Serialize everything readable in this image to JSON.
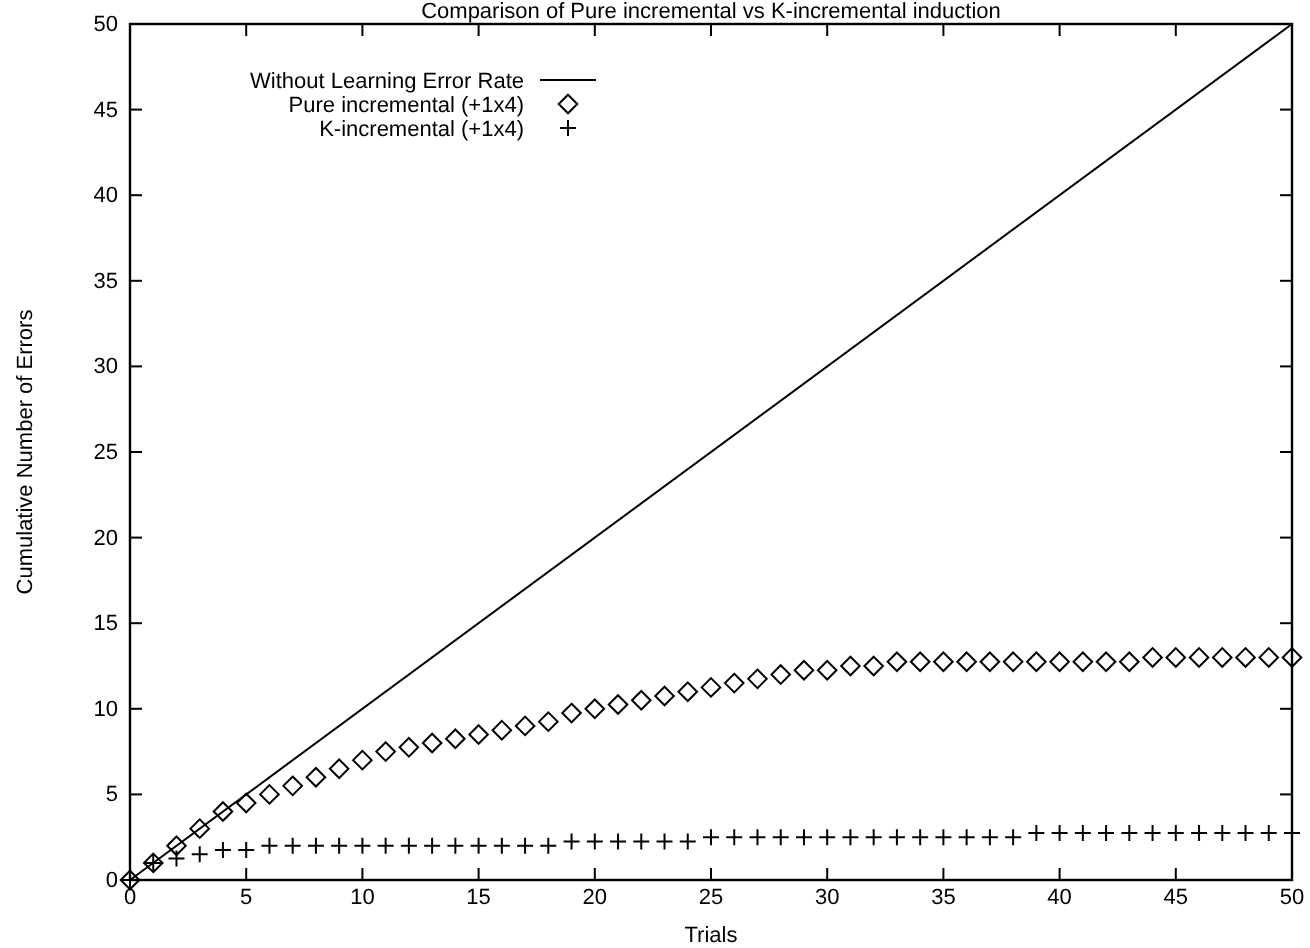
{
  "chart_data": {
    "type": "scatter",
    "title": "Comparison of Pure incremental vs K-incremental induction",
    "xlabel": "Trials",
    "ylabel": "Cumulative Number of Errors",
    "xlim": [
      0,
      50
    ],
    "ylim": [
      0,
      50
    ],
    "xticks": [
      0,
      5,
      10,
      15,
      20,
      25,
      30,
      35,
      40,
      45,
      50
    ],
    "yticks": [
      0,
      5,
      10,
      15,
      20,
      25,
      30,
      35,
      40,
      45,
      50
    ],
    "legend": "top left",
    "grid": false,
    "series": [
      {
        "name": "Without Learning Error Rate",
        "type": "line",
        "color": "#000000",
        "marker": "none",
        "x": [
          0,
          50
        ],
        "values": [
          0,
          50
        ]
      },
      {
        "name": "Pure incremental (+1x4)",
        "color": "#000000",
        "marker": "diamond",
        "x": [
          0,
          1,
          2,
          3,
          4,
          5,
          6,
          7,
          8,
          9,
          10,
          11,
          12,
          13,
          14,
          15,
          16,
          17,
          18,
          19,
          20,
          21,
          22,
          23,
          24,
          25,
          26,
          27,
          28,
          29,
          30,
          31,
          32,
          33,
          34,
          35,
          36,
          37,
          38,
          39,
          40,
          41,
          42,
          43,
          44,
          45,
          46,
          47,
          48,
          49,
          50
        ],
        "values": [
          0,
          1,
          2,
          3,
          4,
          4.5,
          5,
          5.5,
          6,
          6.5,
          7,
          7.5,
          7.75,
          8,
          8.25,
          8.5,
          8.75,
          9,
          9.25,
          9.75,
          10,
          10.25,
          10.5,
          10.75,
          11,
          11.25,
          11.5,
          11.75,
          12,
          12.25,
          12.25,
          12.5,
          12.5,
          12.75,
          12.75,
          12.75,
          12.75,
          12.75,
          12.75,
          12.75,
          12.75,
          12.75,
          12.75,
          12.75,
          13,
          13,
          13,
          13,
          13,
          13,
          13
        ]
      },
      {
        "name": "K-incremental (+1x4)",
        "color": "#000000",
        "marker": "cross",
        "x": [
          0,
          1,
          2,
          3,
          4,
          5,
          6,
          7,
          8,
          9,
          10,
          11,
          12,
          13,
          14,
          15,
          16,
          17,
          18,
          19,
          20,
          21,
          22,
          23,
          24,
          25,
          26,
          27,
          28,
          29,
          30,
          31,
          32,
          33,
          34,
          35,
          36,
          37,
          38,
          39,
          40,
          41,
          42,
          43,
          44,
          45,
          46,
          47,
          48,
          49,
          50
        ],
        "values": [
          0,
          1,
          1.25,
          1.5,
          1.75,
          1.75,
          2,
          2,
          2,
          2,
          2,
          2,
          2,
          2,
          2,
          2,
          2,
          2,
          2,
          2.25,
          2.25,
          2.25,
          2.25,
          2.25,
          2.25,
          2.5,
          2.5,
          2.5,
          2.5,
          2.5,
          2.5,
          2.5,
          2.5,
          2.5,
          2.5,
          2.5,
          2.5,
          2.5,
          2.5,
          2.75,
          2.75,
          2.75,
          2.75,
          2.75,
          2.75,
          2.75,
          2.75,
          2.75,
          2.75,
          2.75,
          2.75
        ]
      }
    ]
  }
}
